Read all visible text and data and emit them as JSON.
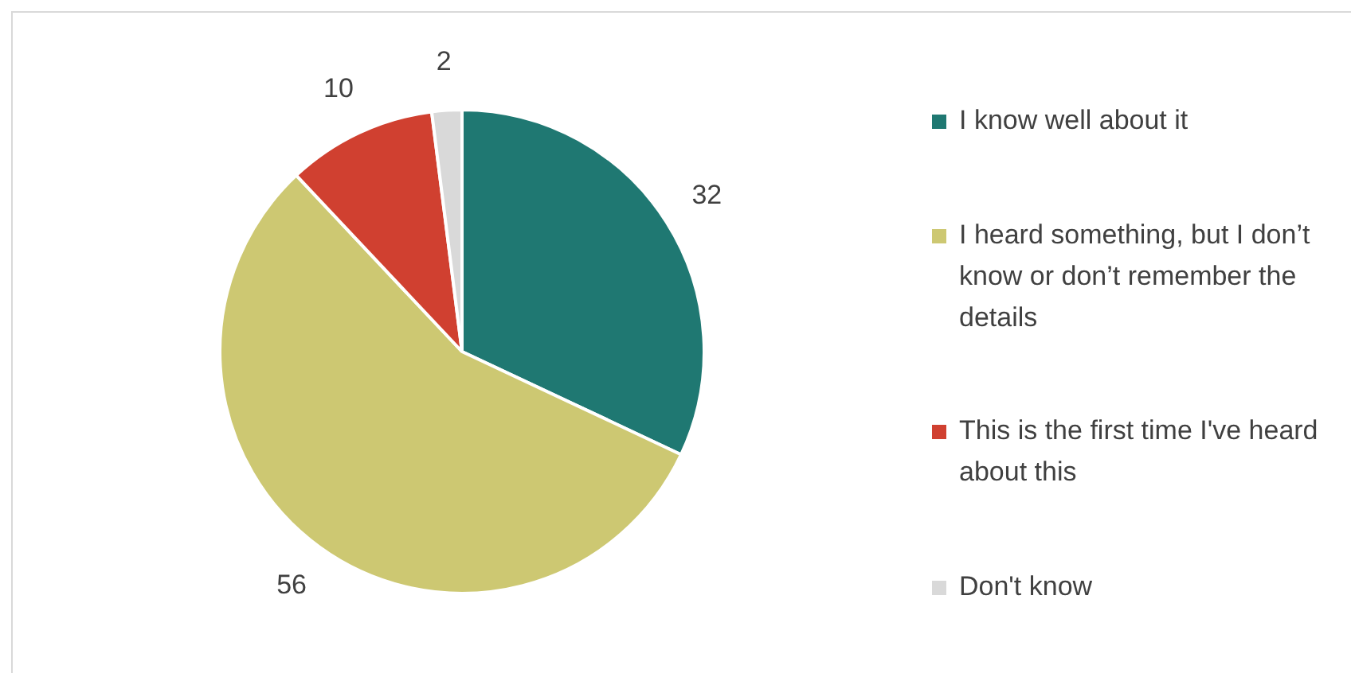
{
  "chart_data": {
    "type": "pie",
    "categories": [
      "I know well about it",
      "I heard something, but I don’t know or don’t remember the details",
      "This is the first time I've heard about this",
      "Don't know"
    ],
    "values": [
      32,
      56,
      10,
      2
    ],
    "colors": [
      "#1f7872",
      "#cdc872",
      "#d04030",
      "#d9d9d9"
    ],
    "data_labels": true,
    "legend": "right"
  }
}
